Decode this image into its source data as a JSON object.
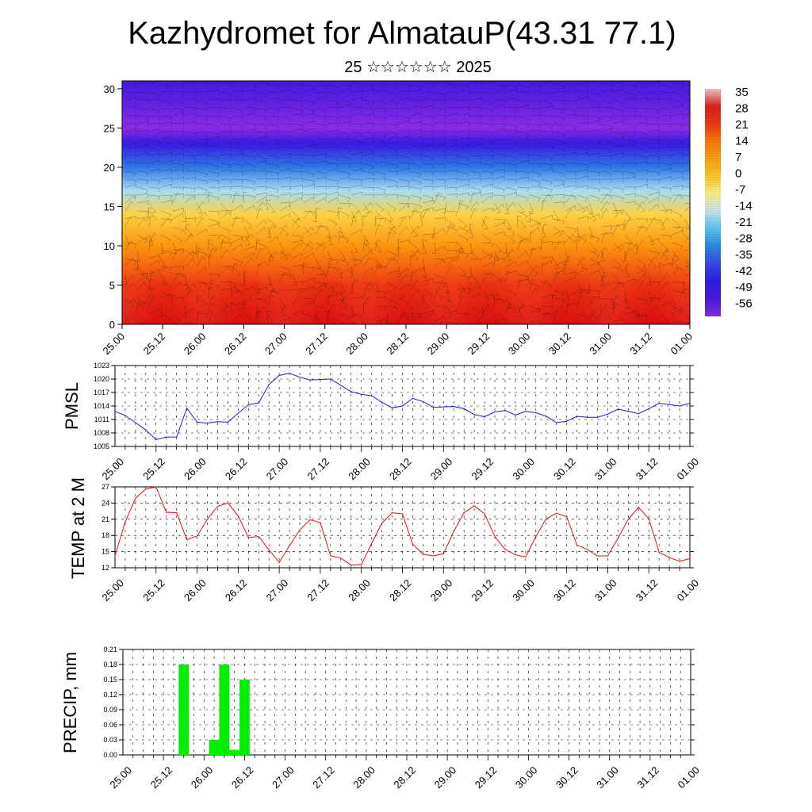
{
  "title": "Kazhydromet for AlmatauP(43.31 77.1)",
  "subtitle": "25 ☆☆☆☆☆☆ 2025",
  "time_labels": [
    "25.00",
    "25.12",
    "26.00",
    "26.12",
    "27.00",
    "27.12",
    "28.00",
    "28.12",
    "29.00",
    "29.12",
    "30.00",
    "30.12",
    "31.00",
    "31.12",
    "01.00"
  ],
  "chart_data": [
    {
      "type": "heatmap",
      "title": "",
      "xlabel": "",
      "ylabel": "",
      "x_ticks": [
        "25.00",
        "25.12",
        "26.00",
        "26.12",
        "27.00",
        "27.12",
        "28.00",
        "28.12",
        "29.00",
        "29.12",
        "30.00",
        "30.12",
        "31.00",
        "31.12",
        "01.00"
      ],
      "y_ticks": [
        0,
        5,
        10,
        15,
        20,
        25,
        30
      ],
      "ylim": [
        0,
        31
      ],
      "overlay": "wind barbs",
      "colorbar": {
        "labels": [
          "35",
          "28",
          "21",
          "14",
          "7",
          "0",
          "-7",
          "-14",
          "-21",
          "-28",
          "-35",
          "-42",
          "-49",
          "-56"
        ],
        "colors": [
          "#f3c4c4",
          "#e02020",
          "#ee3a14",
          "#fa7a0a",
          "#fca010",
          "#fdc82a",
          "#fdf08a",
          "#c8e4f2",
          "#5cc4f0",
          "#2a8ae6",
          "#3a4ae6",
          "#2a1ee6",
          "#4a1ae0",
          "#8a2ae6"
        ]
      },
      "vertical_profile": [
        {
          "level": 0,
          "value": 28
        },
        {
          "level": 5,
          "value": 21
        },
        {
          "level": 10,
          "value": 9
        },
        {
          "level": 14,
          "value": -2
        },
        {
          "level": 17,
          "value": -16
        },
        {
          "level": 20,
          "value": -30
        },
        {
          "level": 23,
          "value": -45
        },
        {
          "level": 25,
          "value": -58
        },
        {
          "level": 28,
          "value": -52
        },
        {
          "level": 31,
          "value": -48
        }
      ],
      "diurnal_warm_times": [
        25.5,
        26.5,
        27.5,
        28.5,
        29.5,
        30.5,
        31.5
      ]
    },
    {
      "type": "line",
      "ylabel": "PMSL",
      "ylim": [
        1005,
        1023
      ],
      "y_ticks": [
        1005,
        1008,
        1011,
        1014,
        1017,
        1020,
        1023
      ],
      "x_ticks": [
        "25.00",
        "25.12",
        "26.00",
        "26.12",
        "27.00",
        "27.12",
        "28.00",
        "28.12",
        "29.00",
        "29.12",
        "30.00",
        "30.12",
        "31.00",
        "31.12",
        "01.00"
      ],
      "color": "#1a1ad0",
      "x": [
        25.0,
        25.125,
        25.25,
        25.375,
        25.5,
        25.625,
        25.75,
        25.875,
        26.0,
        26.125,
        26.25,
        26.375,
        26.5,
        26.625,
        26.75,
        26.875,
        27.0,
        27.125,
        27.25,
        27.375,
        27.5,
        27.625,
        27.75,
        27.875,
        28.0,
        28.125,
        28.25,
        28.375,
        28.5,
        28.625,
        28.75,
        28.875,
        29.0,
        29.125,
        29.25,
        29.375,
        29.5,
        29.625,
        29.75,
        29.875,
        30.0,
        30.125,
        30.25,
        30.375,
        30.5,
        30.625,
        30.75,
        30.875,
        31.0,
        31.125,
        31.25,
        31.375,
        31.5,
        31.625,
        31.75,
        31.875,
        32.0
      ],
      "values": [
        1012.8,
        1011.9,
        1010.3,
        1008.7,
        1006.5,
        1007.1,
        1007.1,
        1013.5,
        1010.4,
        1010.2,
        1010.5,
        1010.4,
        1012.4,
        1014.3,
        1014.7,
        1018.8,
        1020.8,
        1021.3,
        1020.4,
        1019.8,
        1019.9,
        1020.0,
        1018.6,
        1017.2,
        1016.6,
        1016.3,
        1014.8,
        1013.6,
        1014.0,
        1015.7,
        1015.0,
        1013.7,
        1013.8,
        1013.9,
        1013.4,
        1012.1,
        1011.6,
        1012.7,
        1013.0,
        1012.0,
        1012.8,
        1012.5,
        1011.7,
        1010.3,
        1010.6,
        1011.7,
        1011.5,
        1011.5,
        1012.2,
        1013.3,
        1012.8,
        1012.3,
        1013.4,
        1014.6,
        1014.3,
        1014.0,
        1014.6
      ]
    },
    {
      "type": "line",
      "ylabel": "TEMP at 2 M",
      "ylim": [
        12,
        27
      ],
      "y_ticks": [
        12,
        15,
        18,
        21,
        24,
        27
      ],
      "x_ticks": [
        "25.00",
        "25.12",
        "26.00",
        "26.12",
        "27.00",
        "27.12",
        "28.00",
        "28.12",
        "29.00",
        "29.12",
        "30.00",
        "30.12",
        "31.00",
        "31.12",
        "01.00"
      ],
      "color": "#e01010",
      "x": [
        25.0,
        25.125,
        25.25,
        25.375,
        25.5,
        25.625,
        25.75,
        25.875,
        26.0,
        26.125,
        26.25,
        26.375,
        26.5,
        26.625,
        26.75,
        26.875,
        27.0,
        27.125,
        27.25,
        27.375,
        27.5,
        27.625,
        27.75,
        27.875,
        28.0,
        28.125,
        28.25,
        28.375,
        28.5,
        28.625,
        28.75,
        28.875,
        29.0,
        29.125,
        29.25,
        29.375,
        29.5,
        29.625,
        29.75,
        29.875,
        30.0,
        30.125,
        30.25,
        30.375,
        30.5,
        30.625,
        30.75,
        30.875,
        31.0,
        31.125,
        31.25,
        31.375,
        31.5,
        31.625,
        31.75,
        31.875,
        32.0
      ],
      "values": [
        14.2,
        20.5,
        24.9,
        26.6,
        27.3,
        22.3,
        22.2,
        17.2,
        17.9,
        21.0,
        23.4,
        24.0,
        21.6,
        17.6,
        17.8,
        15.3,
        13.0,
        16.1,
        19.0,
        20.9,
        20.4,
        14.2,
        13.8,
        12.5,
        12.6,
        16.5,
        20.3,
        22.2,
        22.0,
        16.4,
        14.5,
        14.2,
        14.6,
        18.7,
        22.2,
        23.5,
        22.0,
        17.8,
        15.4,
        14.4,
        14.0,
        17.8,
        21.1,
        22.1,
        21.5,
        16.2,
        15.4,
        14.2,
        14.2,
        17.5,
        21.0,
        23.2,
        21.1,
        14.9,
        13.9,
        13.2,
        13.7
      ]
    },
    {
      "type": "bar",
      "ylabel": "PRECIP, mm",
      "ylim": [
        0,
        0.21
      ],
      "y_ticks": [
        "0.00",
        "0.03",
        "0.06",
        "0.09",
        "0.12",
        "0.15",
        "0.18",
        "0.21"
      ],
      "x_ticks": [
        "25.00",
        "25.12",
        "26.00",
        "26.12",
        "27.00",
        "27.12",
        "28.00",
        "28.12",
        "29.00",
        "29.12",
        "30.00",
        "30.12",
        "31.00",
        "31.12",
        "01.00"
      ],
      "color": "#00ee00",
      "bars": [
        {
          "x": 25.75,
          "value": 0.18
        },
        {
          "x": 26.125,
          "value": 0.03
        },
        {
          "x": 26.25,
          "value": 0.18
        },
        {
          "x": 26.375,
          "value": 0.01
        },
        {
          "x": 26.5,
          "value": 0.15
        }
      ]
    }
  ]
}
